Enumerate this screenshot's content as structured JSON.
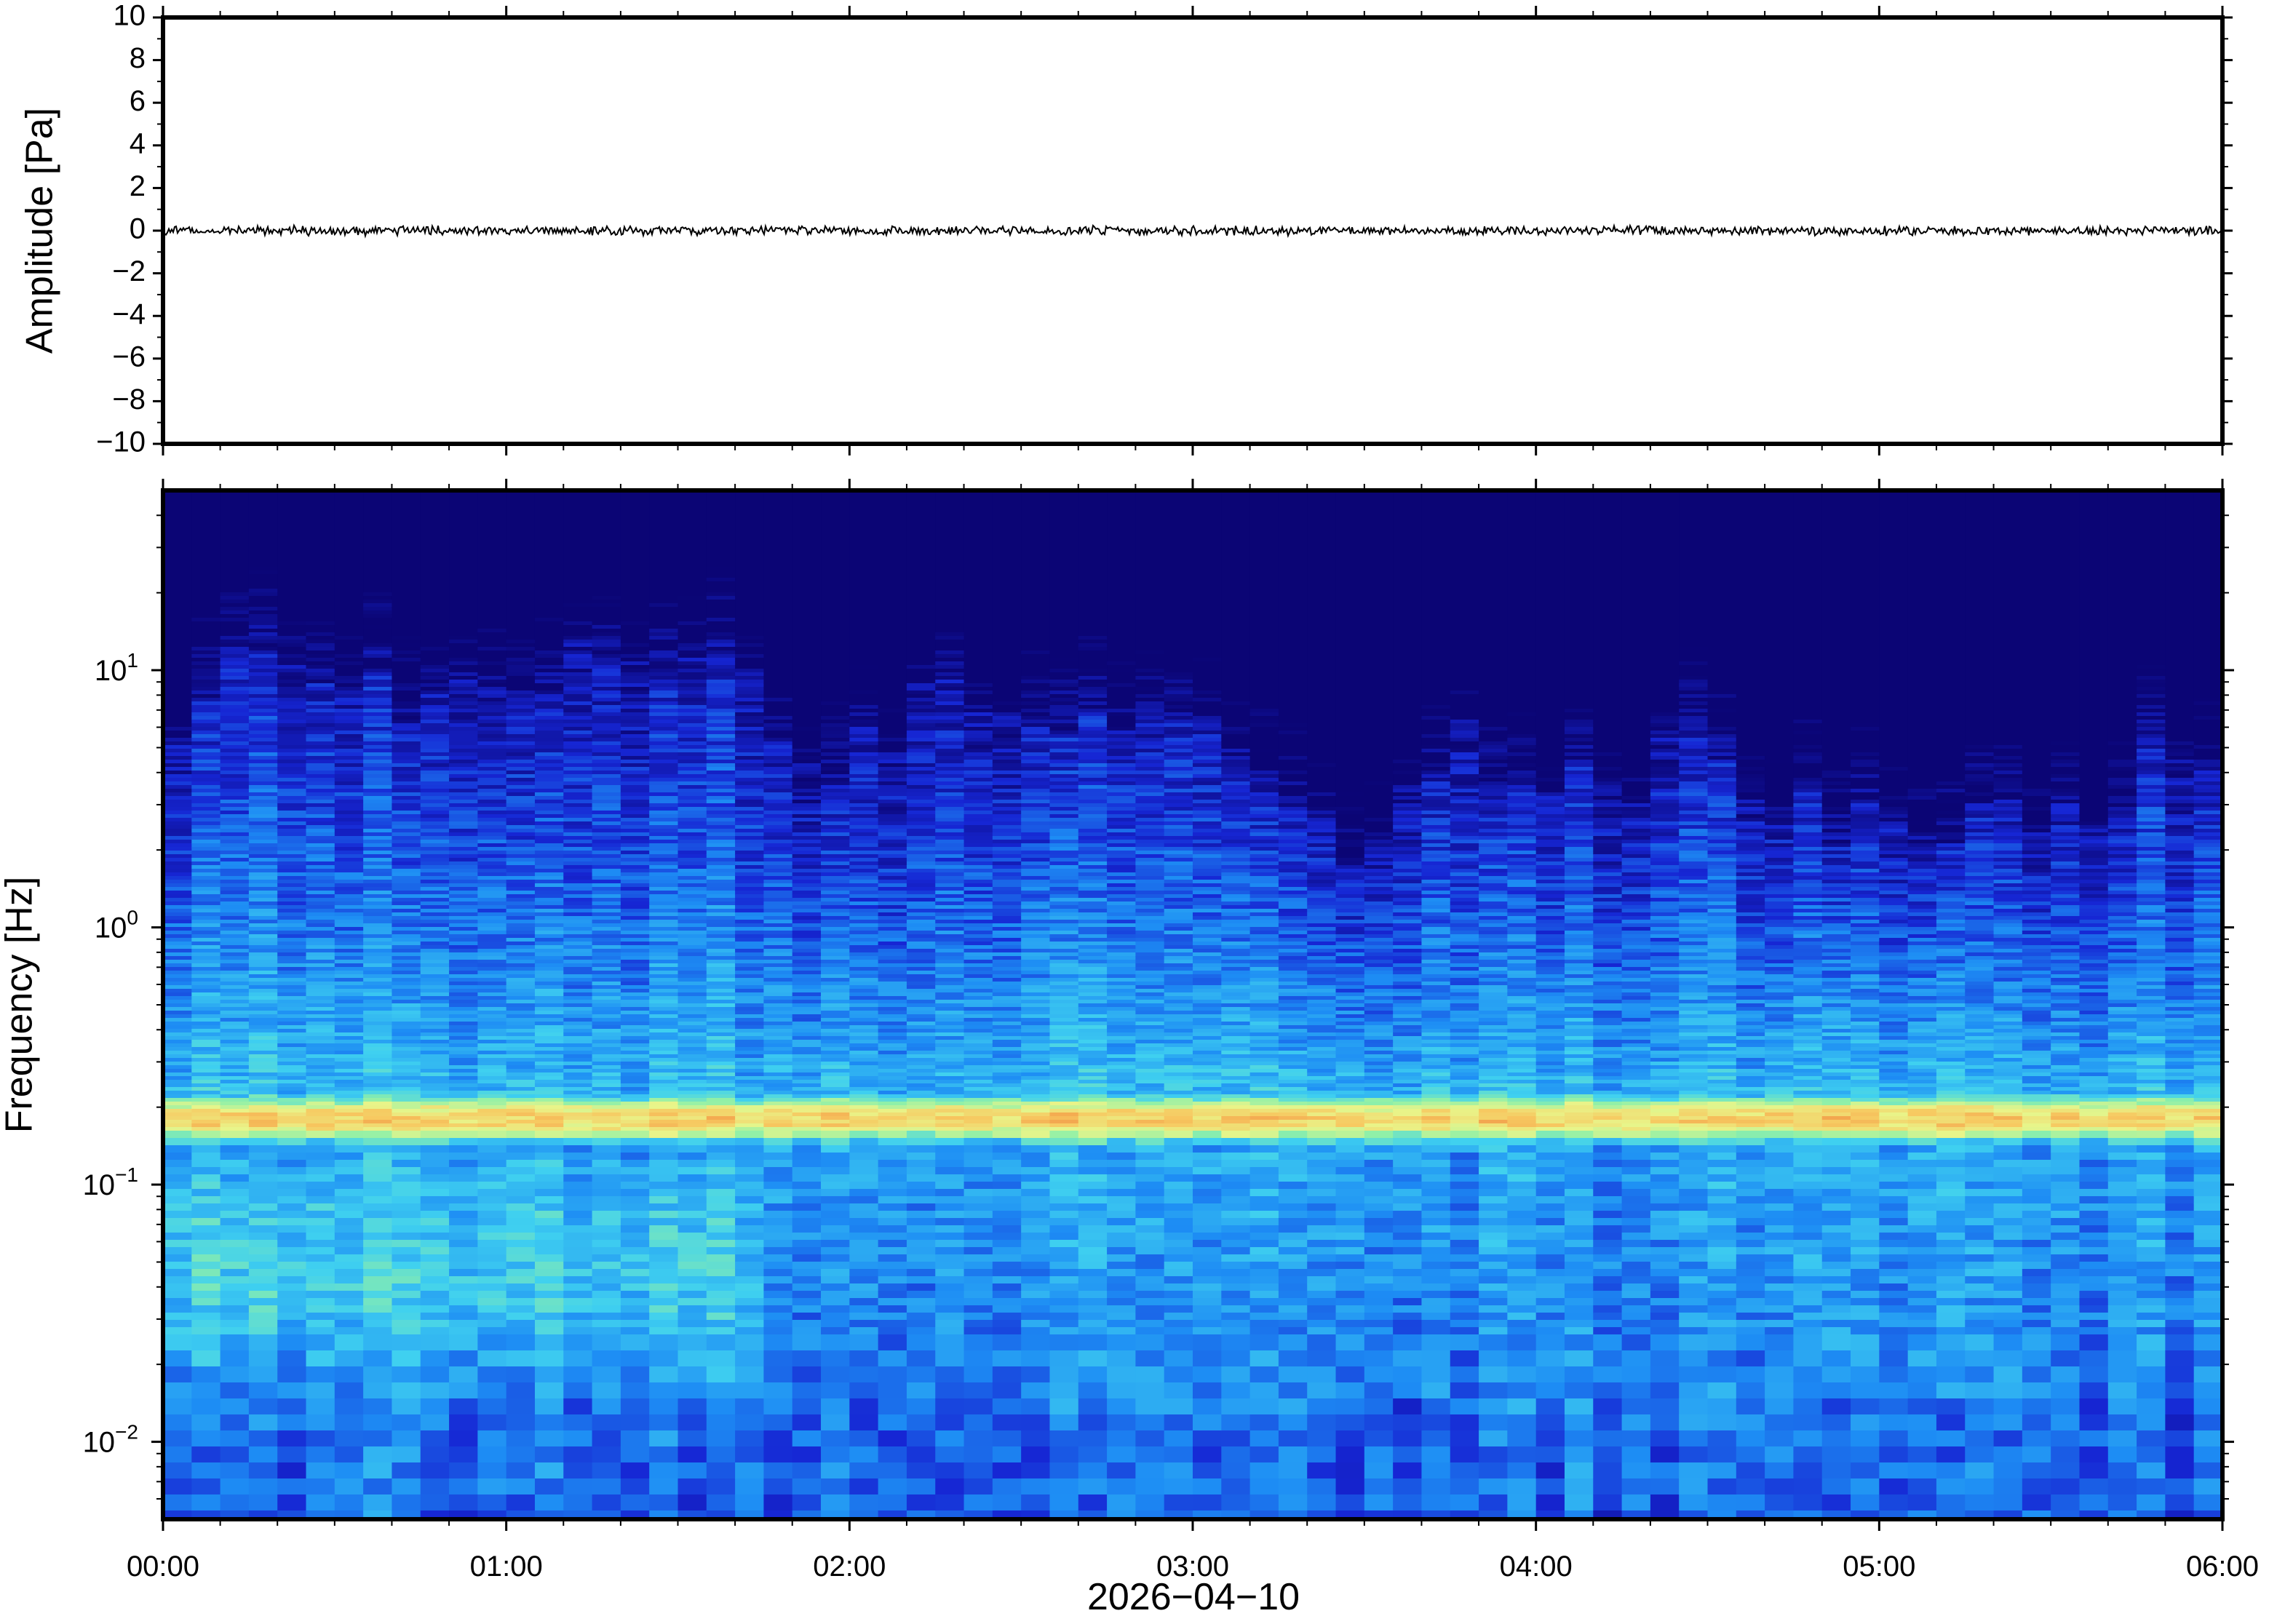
{
  "chart_data": [
    {
      "type": "line",
      "ylabel": "Amplitude [Pa]",
      "ylim": [
        -10,
        10
      ],
      "yticks": [
        -10,
        -8,
        -6,
        -4,
        -2,
        0,
        2,
        4,
        6,
        8,
        10
      ],
      "ytick_labels": [
        "−10",
        "−8",
        "−6",
        "−4",
        "−2",
        "0",
        "2",
        "4",
        "6",
        "8",
        "10"
      ],
      "x_range": [
        "00:00",
        "06:00"
      ],
      "series": [
        {
          "values_summary": "near-zero pressure trace, peak amplitude about 0.2 Pa throughout",
          "color": "#000000"
        }
      ]
    },
    {
      "type": "heatmap",
      "ylabel": "Frequency [Hz]",
      "xlabel": "2026−04−10",
      "y_scale": "log",
      "ylim": [
        0.005,
        50
      ],
      "yticks": [
        0.01,
        0.1,
        1,
        10
      ],
      "ytick_labels": [
        {
          "base": "10",
          "exp": "−2"
        },
        {
          "base": "10",
          "exp": "−1"
        },
        {
          "base": "10",
          "exp": "0"
        },
        {
          "base": "10",
          "exp": "1"
        }
      ],
      "xticks": [
        "00:00",
        "01:00",
        "02:00",
        "03:00",
        "04:00",
        "05:00",
        "06:00"
      ],
      "x_range_hours": [
        0,
        6
      ],
      "colormap": [
        "#0b0575",
        "#1626d4",
        "#1d8cf4",
        "#3fd0f0",
        "#8ff0a8",
        "#e8f58a",
        "#f7c860",
        "#f08a40"
      ],
      "features": {
        "microbarom_band_hz": [
          0.14,
          0.24
        ],
        "microbarom_peak_hz": 0.18,
        "high_freq_cutoff_profile_hz": [
          [
            0.0,
            8
          ],
          [
            0.25,
            16
          ],
          [
            0.5,
            12
          ],
          [
            0.75,
            11
          ],
          [
            1.0,
            11
          ],
          [
            1.25,
            14
          ],
          [
            1.5,
            13
          ],
          [
            1.75,
            10
          ],
          [
            2.0,
            6
          ],
          [
            2.25,
            12
          ],
          [
            2.5,
            11
          ],
          [
            2.75,
            7
          ],
          [
            3.0,
            7
          ],
          [
            3.25,
            5
          ],
          [
            3.5,
            2.5
          ],
          [
            3.75,
            9
          ],
          [
            4.0,
            4
          ],
          [
            4.25,
            5
          ],
          [
            4.5,
            7
          ],
          [
            4.75,
            4
          ],
          [
            5.0,
            3
          ],
          [
            5.25,
            4
          ],
          [
            5.5,
            4
          ],
          [
            5.75,
            5
          ],
          [
            6.0,
            5
          ]
        ]
      }
    }
  ]
}
